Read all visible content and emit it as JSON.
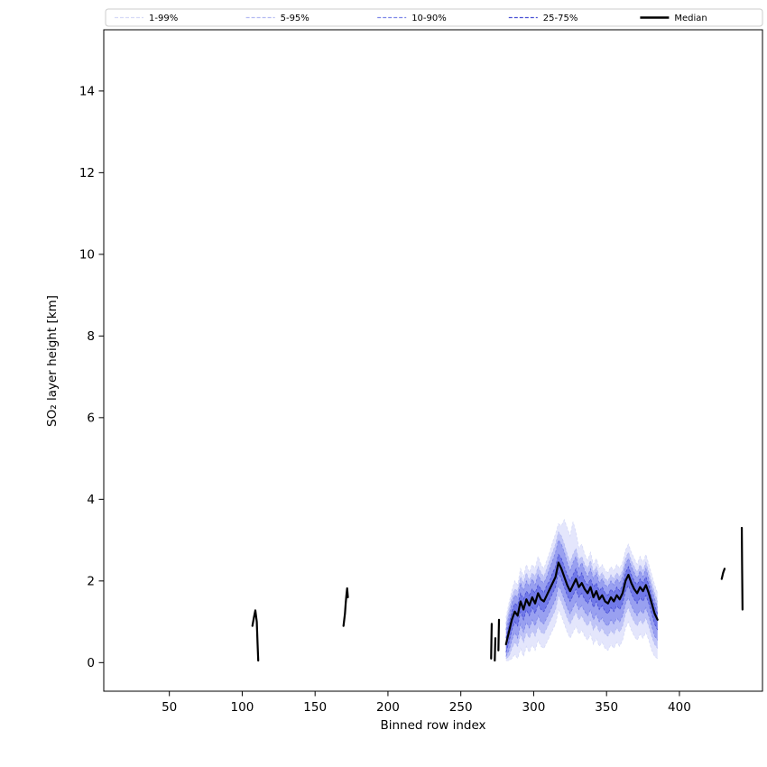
{
  "chart_data": {
    "type": "line",
    "title": "",
    "xlabel": "Binned row index",
    "ylabel": "SO₂ layer height [km]",
    "xlim": [
      5,
      457
    ],
    "ylim": [
      -0.7,
      15.5
    ],
    "xticks": [
      50,
      100,
      150,
      200,
      250,
      300,
      350,
      400
    ],
    "yticks": [
      0,
      2,
      4,
      6,
      8,
      10,
      12,
      14
    ],
    "grid": false,
    "legend_position": "top-expanded",
    "median": {
      "label": "Median",
      "color": "#000000"
    },
    "bands": [
      {
        "key": "p1_99",
        "label": "1-99%",
        "line_color": "#d6daf7",
        "fill_color": "rgba(130,140,240,0.22)"
      },
      {
        "key": "p5_95",
        "label": "5-95%",
        "line_color": "#b3baf2",
        "fill_color": "rgba(115,125,235,0.32)"
      },
      {
        "key": "p10_90",
        "label": "10-90%",
        "line_color": "#7d86e8",
        "fill_color": "rgba(100,110,230,0.42)"
      },
      {
        "key": "p25_75",
        "label": "25-75%",
        "line_color": "#4950d4",
        "fill_color": "rgba(80,90,225,0.55)"
      }
    ],
    "segments": [
      {
        "x": [
          107,
          108,
          109,
          110,
          110.5,
          111
        ],
        "median": [
          0.9,
          1.1,
          1.28,
          1.0,
          0.5,
          0.05
        ]
      },
      {
        "x": [
          169.5,
          170.5,
          171,
          171.5,
          172,
          172.5
        ],
        "median": [
          0.9,
          1.2,
          1.45,
          1.65,
          1.82,
          1.6
        ]
      },
      {
        "x": [
          270.8,
          271,
          271.2
        ],
        "median": [
          0.1,
          0.55,
          0.95
        ]
      },
      {
        "x": [
          273.3,
          273.5,
          273.7
        ],
        "median": [
          0.05,
          0.35,
          0.6
        ]
      },
      {
        "x": [
          275.8,
          276,
          276.2
        ],
        "median": [
          0.3,
          0.7,
          1.05
        ]
      },
      {
        "x": [
          281,
          283,
          285,
          287,
          289,
          291,
          293,
          295,
          297,
          299,
          301,
          303,
          305,
          307,
          309,
          311,
          313,
          315,
          317,
          319,
          321,
          323,
          325,
          327,
          329,
          331,
          333,
          335,
          337,
          339,
          341,
          343,
          345,
          347,
          349,
          351,
          353,
          355,
          357,
          359,
          361,
          363,
          365,
          367,
          369,
          371,
          373,
          375,
          377,
          379,
          381,
          383,
          385
        ],
        "median": [
          0.45,
          0.75,
          1.05,
          1.25,
          1.15,
          1.5,
          1.3,
          1.55,
          1.4,
          1.6,
          1.45,
          1.7,
          1.55,
          1.5,
          1.65,
          1.8,
          1.95,
          2.1,
          2.45,
          2.3,
          2.1,
          1.9,
          1.75,
          1.9,
          2.05,
          1.85,
          1.95,
          1.8,
          1.7,
          1.85,
          1.6,
          1.75,
          1.55,
          1.65,
          1.5,
          1.45,
          1.6,
          1.5,
          1.65,
          1.55,
          1.7,
          2.0,
          2.15,
          1.95,
          1.8,
          1.7,
          1.85,
          1.75,
          1.9,
          1.7,
          1.45,
          1.2,
          1.05
        ],
        "p25_75": {
          "lo": [
            0.25,
            0.5,
            0.8,
            1.0,
            0.9,
            1.25,
            1.05,
            1.3,
            1.15,
            1.35,
            1.2,
            1.45,
            1.3,
            1.25,
            1.4,
            1.55,
            1.7,
            1.85,
            2.2,
            2.05,
            1.85,
            1.65,
            1.5,
            1.65,
            1.8,
            1.6,
            1.7,
            1.55,
            1.45,
            1.6,
            1.35,
            1.5,
            1.3,
            1.4,
            1.25,
            1.2,
            1.35,
            1.25,
            1.4,
            1.3,
            1.45,
            1.75,
            1.9,
            1.7,
            1.55,
            1.45,
            1.6,
            1.5,
            1.65,
            1.45,
            1.2,
            0.95,
            0.8
          ],
          "hi": [
            0.6,
            0.95,
            1.25,
            1.45,
            1.4,
            1.7,
            1.55,
            1.75,
            1.65,
            1.8,
            1.7,
            1.9,
            1.8,
            1.7,
            1.9,
            2.0,
            2.2,
            2.35,
            2.65,
            2.55,
            2.35,
            2.15,
            2.0,
            2.15,
            2.3,
            2.05,
            2.2,
            2.0,
            1.9,
            2.05,
            1.85,
            1.95,
            1.75,
            1.85,
            1.7,
            1.65,
            1.8,
            1.7,
            1.85,
            1.75,
            1.9,
            2.2,
            2.35,
            2.15,
            2.0,
            1.9,
            2.05,
            1.95,
            2.1,
            1.9,
            1.6,
            1.4,
            1.2
          ]
        },
        "p10_90": {
          "lo": [
            0.15,
            0.3,
            0.55,
            0.75,
            0.6,
            0.95,
            0.75,
            1.0,
            0.85,
            1.05,
            0.9,
            1.15,
            1.0,
            0.95,
            1.1,
            1.25,
            1.4,
            1.55,
            1.9,
            1.75,
            1.55,
            1.35,
            1.2,
            1.35,
            1.5,
            1.3,
            1.4,
            1.25,
            1.15,
            1.3,
            1.05,
            1.2,
            1.0,
            1.1,
            0.95,
            0.9,
            1.05,
            0.95,
            1.1,
            1.0,
            1.15,
            1.45,
            1.6,
            1.4,
            1.25,
            1.15,
            1.3,
            1.2,
            1.35,
            1.15,
            0.9,
            0.65,
            0.55
          ],
          "hi": [
            0.8,
            1.15,
            1.45,
            1.65,
            1.6,
            1.95,
            1.75,
            2.0,
            1.85,
            2.05,
            1.9,
            2.15,
            2.0,
            1.95,
            2.1,
            2.3,
            2.5,
            2.7,
            3.0,
            2.9,
            2.7,
            2.45,
            2.25,
            2.45,
            2.6,
            2.3,
            2.45,
            2.25,
            2.1,
            2.3,
            2.05,
            2.2,
            1.95,
            2.05,
            1.9,
            1.85,
            2.0,
            1.9,
            2.05,
            1.95,
            2.1,
            2.4,
            2.55,
            2.35,
            2.2,
            2.05,
            2.25,
            2.1,
            2.3,
            2.05,
            1.8,
            1.55,
            1.35
          ]
        },
        "p5_95": {
          "lo": [
            0.1,
            0.15,
            0.35,
            0.5,
            0.4,
            0.7,
            0.5,
            0.75,
            0.6,
            0.8,
            0.65,
            0.9,
            0.75,
            0.7,
            0.85,
            1.0,
            1.15,
            1.3,
            1.65,
            1.5,
            1.3,
            1.1,
            0.95,
            1.1,
            1.25,
            1.05,
            1.15,
            1.0,
            0.9,
            1.05,
            0.8,
            0.95,
            0.75,
            0.85,
            0.7,
            0.65,
            0.8,
            0.7,
            0.85,
            0.75,
            0.9,
            1.2,
            1.35,
            1.15,
            1.0,
            0.9,
            1.05,
            0.95,
            1.1,
            0.9,
            0.65,
            0.45,
            0.35
          ],
          "hi": [
            0.95,
            1.3,
            1.6,
            1.8,
            1.75,
            2.1,
            1.95,
            2.2,
            2.0,
            2.2,
            2.1,
            2.35,
            2.2,
            2.1,
            2.3,
            2.5,
            2.7,
            2.9,
            3.2,
            3.1,
            2.9,
            2.65,
            2.45,
            2.65,
            2.8,
            2.5,
            2.6,
            2.4,
            2.3,
            2.5,
            2.2,
            2.35,
            2.1,
            2.2,
            2.05,
            2.0,
            2.15,
            2.05,
            2.2,
            2.1,
            2.25,
            2.55,
            2.7,
            2.5,
            2.35,
            2.2,
            2.4,
            2.25,
            2.45,
            2.2,
            1.95,
            1.7,
            1.5
          ]
        },
        "p1_99": {
          "lo": [
            0.05,
            0.05,
            0.1,
            0.2,
            0.1,
            0.35,
            0.15,
            0.4,
            0.25,
            0.45,
            0.3,
            0.55,
            0.4,
            0.35,
            0.5,
            0.65,
            0.8,
            0.95,
            1.3,
            1.15,
            0.95,
            0.75,
            0.6,
            0.75,
            0.9,
            0.7,
            0.8,
            0.65,
            0.55,
            0.7,
            0.45,
            0.6,
            0.4,
            0.5,
            0.35,
            0.3,
            0.45,
            0.35,
            0.5,
            0.4,
            0.55,
            0.85,
            1.0,
            0.8,
            0.65,
            0.55,
            0.7,
            0.6,
            0.75,
            0.55,
            0.3,
            0.15,
            0.1
          ],
          "hi": [
            1.1,
            1.45,
            1.75,
            2.0,
            1.9,
            2.3,
            2.1,
            2.4,
            2.2,
            2.4,
            2.3,
            2.6,
            2.4,
            2.3,
            2.5,
            2.7,
            2.95,
            3.15,
            3.4,
            3.35,
            3.5,
            3.3,
            3.1,
            3.45,
            3.2,
            2.8,
            2.9,
            2.65,
            2.5,
            2.7,
            2.4,
            2.55,
            2.3,
            2.4,
            2.25,
            2.2,
            2.35,
            2.25,
            2.4,
            2.3,
            2.45,
            2.75,
            2.9,
            2.7,
            2.55,
            2.4,
            2.6,
            2.45,
            2.65,
            2.4,
            2.15,
            1.9,
            1.7
          ]
        }
      },
      {
        "x": [
          429,
          430,
          431
        ],
        "median": [
          2.05,
          2.2,
          2.3
        ]
      },
      {
        "x": [
          442.8,
          443,
          443.3
        ],
        "median": [
          3.3,
          2.4,
          1.3
        ]
      }
    ]
  }
}
